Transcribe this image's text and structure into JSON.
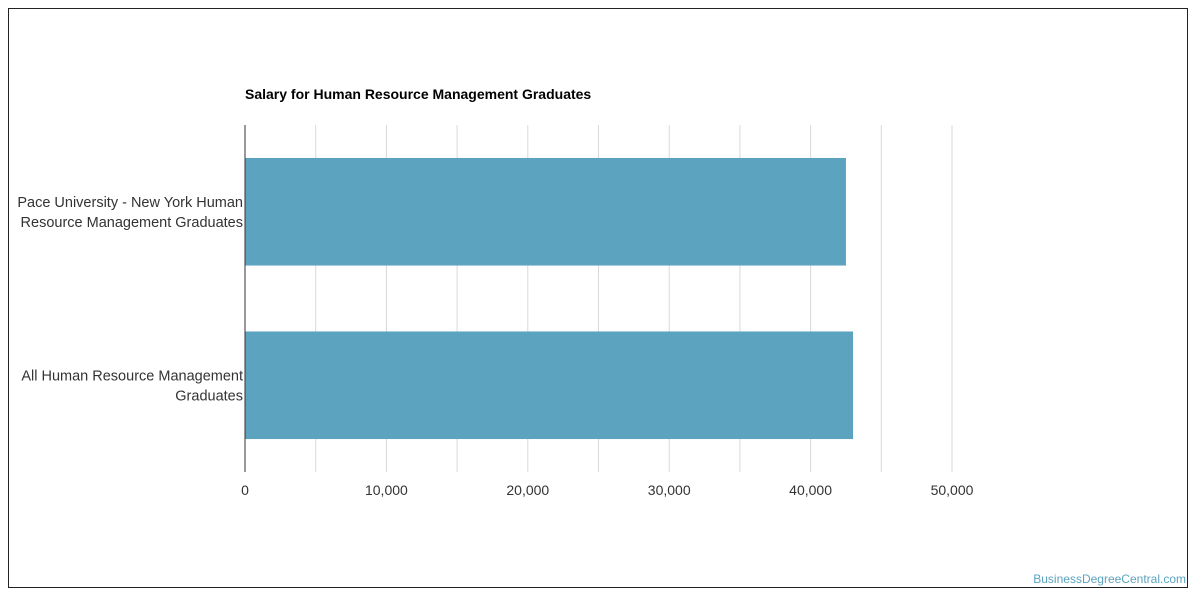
{
  "credit": "BusinessDegreeCentral.com",
  "colors": {
    "bar": "#5ca3bf",
    "grid": "#d9d9d9",
    "axis": "#333333",
    "text": "#333333"
  },
  "chart_data": {
    "type": "bar",
    "orientation": "horizontal",
    "title": "Salary for Human Resource Management Graduates",
    "xlabel": "",
    "ylabel": "",
    "categories": [
      [
        "Pace University - New York Human",
        "Resource Management Graduates"
      ],
      [
        "All Human Resource Management",
        "Graduates"
      ]
    ],
    "values": [
      42500,
      43000
    ],
    "xlim": [
      0,
      50000
    ],
    "ticks": [
      0,
      10000,
      20000,
      30000,
      40000,
      50000
    ],
    "tick_labels": [
      "0",
      "10,000",
      "20,000",
      "30,000",
      "40,000",
      "50,000"
    ],
    "minor_gridlines": [
      5000,
      15000,
      25000,
      35000,
      45000
    ],
    "grid": true,
    "legend": "none"
  }
}
